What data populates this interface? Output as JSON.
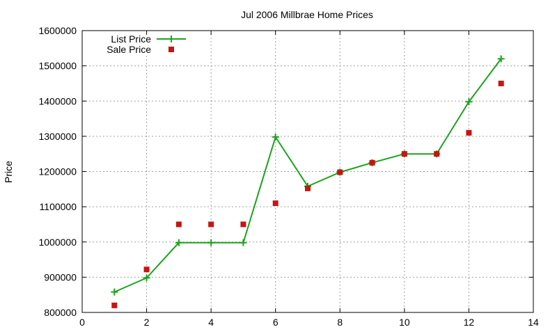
{
  "chart_data": {
    "type": "line",
    "title": "Jul 2006 Millbrae Home Prices",
    "xlabel": "",
    "ylabel": "Price",
    "xlim": [
      0,
      14
    ],
    "ylim": [
      800000,
      1600000
    ],
    "x_ticks": [
      0,
      2,
      4,
      6,
      8,
      10,
      12,
      14
    ],
    "y_ticks": [
      800000,
      900000,
      1000000,
      1100000,
      1200000,
      1300000,
      1400000,
      1500000,
      1600000
    ],
    "grid": true,
    "legend_position": "top-left",
    "series": [
      {
        "name": "List Price",
        "style": "line-with-plus-markers",
        "color": "#1aa31a",
        "x": [
          1,
          2,
          3,
          4,
          5,
          6,
          7,
          8,
          9,
          10,
          11,
          12,
          13
        ],
        "values": [
          858000,
          898000,
          998000,
          998000,
          998000,
          1298000,
          1158000,
          1198000,
          1225000,
          1250000,
          1250000,
          1398000,
          1520000
        ]
      },
      {
        "name": "Sale Price",
        "style": "square-markers",
        "color": "#c81414",
        "x": [
          1,
          2,
          3,
          4,
          5,
          6,
          7,
          8,
          9,
          10,
          11,
          12,
          13
        ],
        "values": [
          820000,
          922000,
          1050000,
          1050000,
          1050000,
          1110000,
          1152000,
          1198000,
          1225000,
          1250000,
          1250000,
          1310000,
          1450000
        ]
      }
    ]
  }
}
